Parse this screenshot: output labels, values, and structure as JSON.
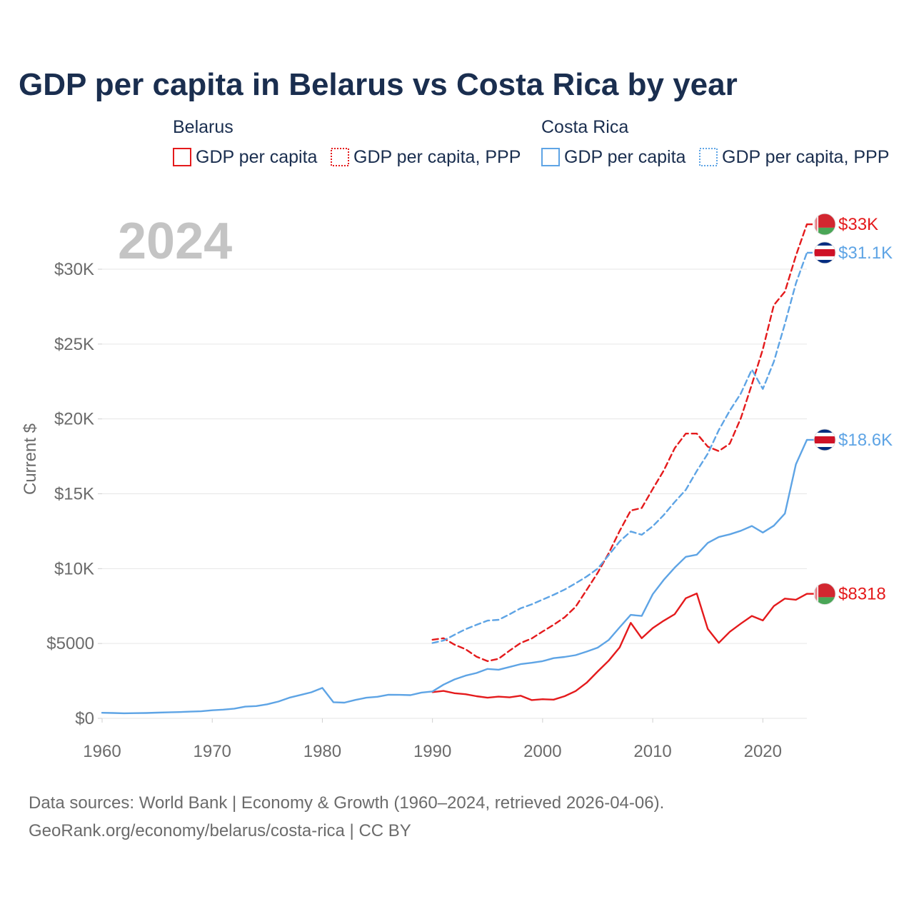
{
  "title": "GDP per capita in Belarus vs Costa Rica by year",
  "legend": {
    "groups": [
      {
        "country": "Belarus",
        "color": "#e41a1c",
        "items": [
          {
            "label": "GDP per capita",
            "style": "solid"
          },
          {
            "label": "GDP per capita, PPP",
            "style": "dotted"
          }
        ]
      },
      {
        "country": "Costa Rica",
        "color": "#5ea4e5",
        "items": [
          {
            "label": "GDP per capita",
            "style": "solid"
          },
          {
            "label": "GDP per capita, PPP",
            "style": "dotted"
          }
        ]
      }
    ]
  },
  "year_watermark": "2024",
  "source_lines": [
    "Data sources: World Bank | Economy & Growth (1960–2024, retrieved 2026-04-06).",
    "GeoRank.org/economy/belarus/costa-rica | CC BY"
  ],
  "chart_data": {
    "type": "line",
    "title": "GDP per capita in Belarus vs Costa Rica by year",
    "xlabel": "",
    "ylabel": "Current $",
    "xlim": [
      1960,
      2024
    ],
    "ylim": [
      -300,
      33000
    ],
    "x_ticks": [
      1960,
      1970,
      1980,
      1990,
      2000,
      2010,
      2020
    ],
    "y_ticks": [
      0,
      5000,
      10000,
      15000,
      20000,
      25000,
      30000
    ],
    "y_tick_labels": [
      "$0",
      "$5000",
      "$10K",
      "$15K",
      "$20K",
      "$25K",
      "$30K"
    ],
    "grid": true,
    "series": [
      {
        "name": "Belarus GDP per capita",
        "country": "Belarus",
        "color": "#e41a1c",
        "dash": "solid",
        "end_label": "$8318",
        "flag": "belarus",
        "x": [
          1990,
          1991,
          1992,
          1993,
          1994,
          1995,
          1996,
          1997,
          1998,
          1999,
          2000,
          2001,
          2002,
          2003,
          2004,
          2005,
          2006,
          2007,
          2008,
          2009,
          2010,
          2011,
          2012,
          2013,
          2014,
          2015,
          2016,
          2017,
          2018,
          2019,
          2020,
          2021,
          2022,
          2023,
          2024
        ],
        "y": [
          1750,
          1830,
          1680,
          1610,
          1480,
          1380,
          1450,
          1400,
          1510,
          1220,
          1280,
          1250,
          1480,
          1820,
          2380,
          3130,
          3850,
          4740,
          6380,
          5350,
          6030,
          6520,
          6960,
          8020,
          8340,
          5970,
          5040,
          5780,
          6330,
          6840,
          6540,
          7500,
          8000,
          7920,
          8318
        ]
      },
      {
        "name": "Belarus GDP per capita, PPP",
        "country": "Belarus",
        "color": "#e41a1c",
        "dash": "dotted",
        "end_label": "$33K",
        "flag": "belarus",
        "x": [
          1990,
          1991,
          1992,
          1993,
          1994,
          1995,
          1996,
          1997,
          1998,
          1999,
          2000,
          2001,
          2002,
          2003,
          2004,
          2005,
          2006,
          2007,
          2008,
          2009,
          2010,
          2011,
          2012,
          2013,
          2014,
          2015,
          2016,
          2017,
          2018,
          2019,
          2020,
          2021,
          2022,
          2023,
          2024
        ],
        "y": [
          5250,
          5350,
          4920,
          4620,
          4120,
          3820,
          3980,
          4520,
          5030,
          5330,
          5800,
          6250,
          6750,
          7450,
          8580,
          9720,
          11020,
          12520,
          13880,
          14050,
          15320,
          16550,
          18050,
          19020,
          19020,
          18150,
          17850,
          18350,
          20050,
          22300,
          24650,
          27600,
          28500,
          30900,
          33000
        ]
      },
      {
        "name": "Costa Rica GDP per capita",
        "country": "Costa Rica",
        "color": "#5ea4e5",
        "dash": "solid",
        "end_label": "$18.6K",
        "flag": "costa-rica",
        "x": [
          1960,
          1961,
          1962,
          1963,
          1964,
          1965,
          1966,
          1967,
          1968,
          1969,
          1970,
          1971,
          1972,
          1973,
          1974,
          1975,
          1976,
          1977,
          1978,
          1979,
          1980,
          1981,
          1982,
          1983,
          1984,
          1985,
          1986,
          1987,
          1988,
          1989,
          1990,
          1991,
          1992,
          1993,
          1994,
          1995,
          1996,
          1997,
          1998,
          1999,
          2000,
          2001,
          2002,
          2003,
          2004,
          2005,
          2006,
          2007,
          2008,
          2009,
          2010,
          2011,
          2012,
          2013,
          2014,
          2015,
          2016,
          2017,
          2018,
          2019,
          2020,
          2021,
          2022,
          2023,
          2024
        ],
        "y": [
          370,
          360,
          340,
          350,
          360,
          380,
          400,
          420,
          450,
          470,
          540,
          580,
          650,
          780,
          820,
          940,
          1120,
          1380,
          1560,
          1740,
          2030,
          1080,
          1050,
          1230,
          1380,
          1440,
          1580,
          1570,
          1550,
          1720,
          1800,
          2250,
          2600,
          2850,
          3030,
          3300,
          3250,
          3430,
          3620,
          3710,
          3820,
          4020,
          4100,
          4220,
          4460,
          4720,
          5230,
          6080,
          6910,
          6840,
          8290,
          9250,
          10070,
          10790,
          10930,
          11720,
          12110,
          12290,
          12530,
          12850,
          12410,
          12870,
          13680,
          16970,
          18600
        ]
      },
      {
        "name": "Costa Rica GDP per capita, PPP",
        "country": "Costa Rica",
        "color": "#5ea4e5",
        "dash": "dotted",
        "end_label": "$31.1K",
        "flag": "costa-rica",
        "x": [
          1990,
          1991,
          1992,
          1993,
          1994,
          1995,
          1996,
          1997,
          1998,
          1999,
          2000,
          2001,
          2002,
          2003,
          2004,
          2005,
          2006,
          2007,
          2008,
          2009,
          2010,
          2011,
          2012,
          2013,
          2014,
          2015,
          2016,
          2017,
          2018,
          2019,
          2020,
          2021,
          2022,
          2023,
          2024
        ],
        "y": [
          5030,
          5200,
          5580,
          5950,
          6250,
          6530,
          6580,
          6950,
          7350,
          7610,
          7930,
          8250,
          8600,
          9020,
          9470,
          10000,
          10900,
          11820,
          12480,
          12260,
          12830,
          13580,
          14450,
          15260,
          16520,
          17680,
          19250,
          20550,
          21700,
          23300,
          22000,
          23820,
          26350,
          29050,
          31100
        ]
      }
    ]
  }
}
